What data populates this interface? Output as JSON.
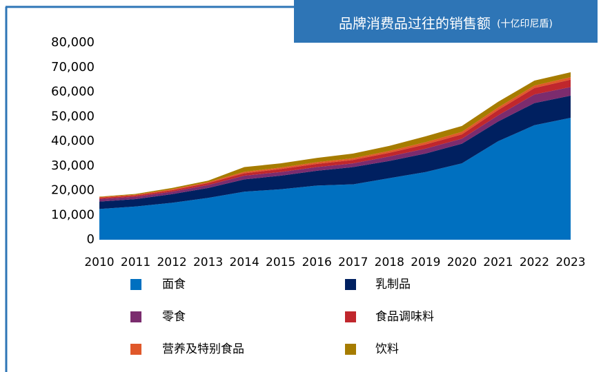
{
  "chart_data": {
    "type": "stacked_area",
    "title": "品牌消费品过往的销售额",
    "subtitle": "(十亿印尼盾)",
    "categories": [
      "2010",
      "2011",
      "2012",
      "2013",
      "2014",
      "2015",
      "2016",
      "2017",
      "2018",
      "2019",
      "2020",
      "2021",
      "2022",
      "2023"
    ],
    "series": [
      {
        "name": "面食",
        "color": "#0070c0",
        "values": [
          12500,
          13500,
          15000,
          17000,
          19500,
          20500,
          22000,
          22500,
          25000,
          27500,
          31000,
          40000,
          46500,
          49500
        ]
      },
      {
        "name": "乳制品",
        "color": "#002060",
        "values": [
          3000,
          3000,
          3500,
          4000,
          5000,
          5500,
          6000,
          7000,
          7000,
          7500,
          8000,
          8000,
          9000,
          9000
        ]
      },
      {
        "name": "零食",
        "color": "#7b2c6e",
        "values": [
          1000,
          1000,
          1000,
          1200,
          1500,
          1500,
          1500,
          1500,
          1800,
          2000,
          2000,
          2500,
          3500,
          3500
        ]
      },
      {
        "name": "食品调味料",
        "color": "#c0272d",
        "values": [
          500,
          500,
          600,
          800,
          1000,
          1200,
          1300,
          1400,
          1500,
          1700,
          1800,
          2200,
          2600,
          3000
        ]
      },
      {
        "name": "营养及特别食品",
        "color": "#e0582a",
        "values": [
          300,
          300,
          400,
          400,
          600,
          600,
          700,
          700,
          800,
          900,
          1000,
          1000,
          1000,
          1000
        ]
      },
      {
        "name": "饮料",
        "color": "#a67c00",
        "values": [
          200,
          300,
          500,
          600,
          1900,
          1700,
          1700,
          1900,
          2000,
          2400,
          2400,
          2300,
          2000,
          2000
        ]
      }
    ],
    "ylim": [
      0,
      80000
    ],
    "yticks": [
      0,
      {
        "value": 10000,
        "label": "10,000"
      },
      {
        "value": 20000,
        "label": "20,000"
      },
      {
        "value": 30000,
        "label": "30,000"
      },
      {
        "value": 40000,
        "label": "40,000"
      },
      {
        "value": 50000,
        "label": "50,000"
      },
      {
        "value": 60000,
        "label": "60,000"
      },
      {
        "value": 70000,
        "label": "70,000"
      },
      {
        "value": 80000,
        "label": "80,000"
      }
    ]
  }
}
